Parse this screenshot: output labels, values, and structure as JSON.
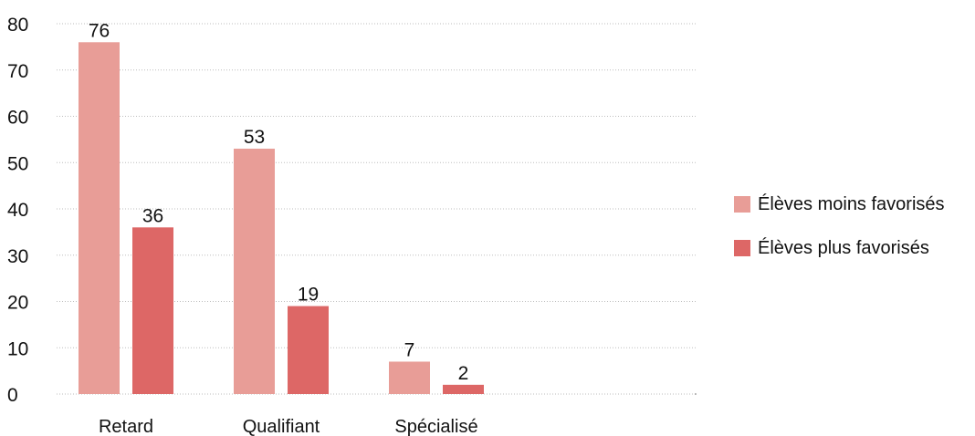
{
  "chart_data": {
    "type": "bar",
    "categories": [
      "Retard",
      "Qualifiant",
      "Spécialisé"
    ],
    "series": [
      {
        "name": "Élèves moins favorisés",
        "values": [
          76,
          53,
          7
        ],
        "color": "#e89d97"
      },
      {
        "name": "Élèves plus favorisés",
        "values": [
          36,
          19,
          2
        ],
        "color": "#dd6766"
      }
    ],
    "yticks": [
      0,
      10,
      20,
      30,
      40,
      50,
      60,
      70,
      80
    ],
    "ylim": [
      0,
      80
    ],
    "grid": true,
    "legend_position": "right",
    "title": "",
    "xlabel": "",
    "ylabel": ""
  }
}
